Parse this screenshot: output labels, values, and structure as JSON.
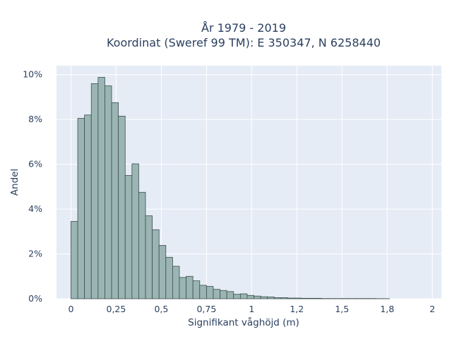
{
  "chart_data": {
    "type": "bar",
    "title_line1": "År 1979 - 2019",
    "title_line2": "Koordinat (Sweref 99 TM): E 350347, N 6258440",
    "xlabel": "Signifikant våghöjd (m)",
    "ylabel": "Andel",
    "xlim": [
      -0.08,
      2.05
    ],
    "ylim": [
      0,
      10.4
    ],
    "bin_start": 0.0,
    "bin_width": 0.0375,
    "values": [
      3.45,
      8.05,
      8.2,
      9.6,
      9.88,
      9.5,
      8.75,
      8.15,
      5.5,
      6.02,
      4.75,
      3.7,
      3.08,
      2.38,
      1.85,
      1.45,
      0.95,
      1.0,
      0.8,
      0.6,
      0.55,
      0.42,
      0.37,
      0.32,
      0.2,
      0.22,
      0.15,
      0.12,
      0.09,
      0.08,
      0.05,
      0.05,
      0.03,
      0.03,
      0.02,
      0.02,
      0.02,
      0.01,
      0.01,
      0.01,
      0.01,
      0.01,
      0.01,
      0.01,
      0.01,
      0.005,
      0.005
    ],
    "x_ticks": [
      {
        "value": 0,
        "label": "0"
      },
      {
        "value": 0.25,
        "label": "0,25"
      },
      {
        "value": 0.5,
        "label": "0,5"
      },
      {
        "value": 0.75,
        "label": "0,75"
      },
      {
        "value": 1.0,
        "label": "1"
      },
      {
        "value": 1.25,
        "label": "1,2"
      },
      {
        "value": 1.5,
        "label": "1,5"
      },
      {
        "value": 1.75,
        "label": "1,8"
      },
      {
        "value": 2.0,
        "label": "2"
      }
    ],
    "y_ticks": [
      {
        "value": 0,
        "label": "0%"
      },
      {
        "value": 2,
        "label": "2%"
      },
      {
        "value": 4,
        "label": "4%"
      },
      {
        "value": 6,
        "label": "6%"
      },
      {
        "value": 8,
        "label": "8%"
      },
      {
        "value": 10,
        "label": "10%"
      }
    ],
    "grid": true,
    "legend": "none",
    "colors": {
      "bar_fill": "#9ab5b3",
      "bar_stroke": "#3d4f4e",
      "plot_background": "#e5ecf6",
      "grid": "#ffffff",
      "text": "#2a3f5f"
    }
  }
}
